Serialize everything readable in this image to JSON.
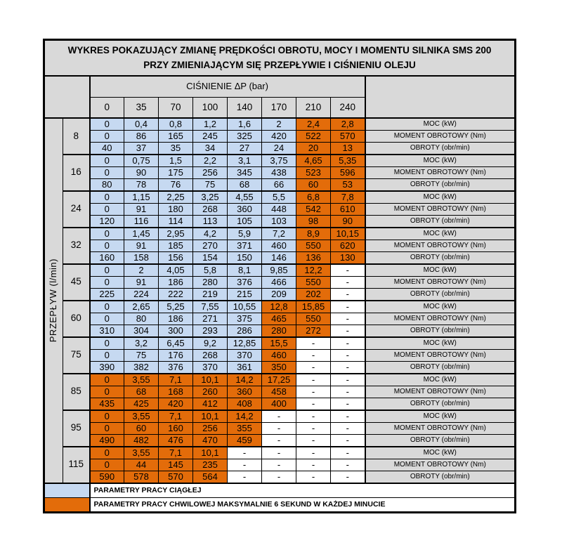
{
  "table_header": {
    "title_line1": "WYKRES POKAZUJĄCY ZMIANĘ PRĘDKOŚCI OBROTU, MOCY I MOMENTU SILNIKA SMS 200",
    "title_line2": "PRZY ZMIENIAJĄCYM SIĘ PRZEPŁYWIE I CIŚNIENIU OLEJU",
    "pressure_header": "CIŚNIENIE ΔP (bar)",
    "flow_axis_label": "PRZEPŁYW (l/min)"
  },
  "colors": {
    "continuous_blue": "#C6D9F1",
    "momentary_orange": "#E36C0A",
    "header_gray": "#D9D9D9",
    "border_black": "#000000",
    "page_white": "#FFFFFF"
  },
  "legend": {
    "continuous": "PARAMETRY PRACY CIĄGŁEJ",
    "momentary": "PARAMETRY PRACY CHWILOWEJ MAKSYMALNIE 6 SEKUND W KAŻDEJ MINUCIE"
  },
  "chart_data": {
    "type": "table",
    "title": "WYKRES POKAZUJĄCY ZMIANĘ PRĘDKOŚCI OBROTU, MOCY I MOMENTU SILNIKA SMS 200 PRZY ZMIENIAJĄCYM SIĘ PRZEPŁYWIE I CIŚNIENIU OLEJU",
    "column_axis_label": "CIŚNIENIE ΔP (bar)",
    "row_axis_label": "PRZEPŁYW (l/min)",
    "pressure_columns": [
      "0",
      "35",
      "70",
      "100",
      "140",
      "170",
      "210",
      "240"
    ],
    "metric_labels": [
      "MOC (kW)",
      "MOMENT OBROTOWY (Nm)",
      "OBROTY (obr/min)"
    ],
    "cell_style_legend": {
      "c": "continuous (blue)",
      "m": "momentary (orange)",
      "d": "no data (white dash)"
    },
    "groups": [
      {
        "flow": "8",
        "rows": [
          [
            "0",
            "0,4",
            "0,8",
            "1,2",
            "1,6",
            "2",
            "2,4",
            "2,8"
          ],
          [
            "0",
            "86",
            "165",
            "245",
            "325",
            "420",
            "522",
            "570"
          ],
          [
            "40",
            "37",
            "35",
            "34",
            "27",
            "24",
            "20",
            "13"
          ]
        ],
        "cell_styles": [
          "c",
          "c",
          "c",
          "c",
          "c",
          "c",
          "m",
          "m"
        ]
      },
      {
        "flow": "16",
        "rows": [
          [
            "0",
            "0,75",
            "1,5",
            "2,2",
            "3,1",
            "3,75",
            "4,65",
            "5,35"
          ],
          [
            "0",
            "90",
            "175",
            "256",
            "345",
            "438",
            "523",
            "596"
          ],
          [
            "80",
            "78",
            "76",
            "75",
            "68",
            "66",
            "60",
            "53"
          ]
        ],
        "cell_styles": [
          "c",
          "c",
          "c",
          "c",
          "c",
          "c",
          "m",
          "m"
        ]
      },
      {
        "flow": "24",
        "rows": [
          [
            "0",
            "1,15",
            "2,25",
            "3,25",
            "4,55",
            "5,5",
            "6,8",
            "7,8"
          ],
          [
            "0",
            "91",
            "180",
            "268",
            "360",
            "448",
            "542",
            "610"
          ],
          [
            "120",
            "116",
            "114",
            "113",
            "105",
            "103",
            "98",
            "90"
          ]
        ],
        "cell_styles": [
          "c",
          "c",
          "c",
          "c",
          "c",
          "c",
          "m",
          "m"
        ]
      },
      {
        "flow": "32",
        "rows": [
          [
            "0",
            "1,45",
            "2,95",
            "4,2",
            "5,9",
            "7,2",
            "8,9",
            "10,15"
          ],
          [
            "0",
            "91",
            "185",
            "270",
            "371",
            "460",
            "550",
            "620"
          ],
          [
            "160",
            "158",
            "156",
            "154",
            "150",
            "146",
            "136",
            "130"
          ]
        ],
        "cell_styles": [
          "c",
          "c",
          "c",
          "c",
          "c",
          "c",
          "m",
          "m"
        ]
      },
      {
        "flow": "45",
        "rows": [
          [
            "0",
            "2",
            "4,05",
            "5,8",
            "8,1",
            "9,85",
            "12,2",
            "-"
          ],
          [
            "0",
            "91",
            "186",
            "280",
            "376",
            "466",
            "550",
            "-"
          ],
          [
            "225",
            "224",
            "222",
            "219",
            "215",
            "209",
            "202",
            "-"
          ]
        ],
        "cell_styles": [
          "c",
          "c",
          "c",
          "c",
          "c",
          "c",
          "m",
          "d"
        ]
      },
      {
        "flow": "60",
        "rows": [
          [
            "0",
            "2,65",
            "5,25",
            "7,55",
            "10,55",
            "12,8",
            "15,85",
            "-"
          ],
          [
            "0",
            "80",
            "186",
            "271",
            "375",
            "465",
            "550",
            "-"
          ],
          [
            "310",
            "304",
            "300",
            "293",
            "286",
            "280",
            "272",
            "-"
          ]
        ],
        "cell_styles": [
          "c",
          "c",
          "c",
          "c",
          "c",
          "m",
          "m",
          "d"
        ]
      },
      {
        "flow": "75",
        "rows": [
          [
            "0",
            "3,2",
            "6,45",
            "9,2",
            "12,85",
            "15,5",
            "-",
            "-"
          ],
          [
            "0",
            "75",
            "176",
            "268",
            "370",
            "460",
            "-",
            "-"
          ],
          [
            "390",
            "382",
            "376",
            "370",
            "361",
            "350",
            "-",
            "-"
          ]
        ],
        "cell_styles": [
          "c",
          "c",
          "c",
          "c",
          "c",
          "m",
          "d",
          "d"
        ]
      },
      {
        "flow": "85",
        "rows": [
          [
            "0",
            "3,55",
            "7,1",
            "10,1",
            "14,2",
            "17,25",
            "-",
            "-"
          ],
          [
            "0",
            "68",
            "168",
            "260",
            "360",
            "458",
            "-",
            "-"
          ],
          [
            "435",
            "425",
            "420",
            "412",
            "408",
            "400",
            "-",
            "-"
          ]
        ],
        "cell_styles": [
          "m",
          "m",
          "m",
          "m",
          "m",
          "m",
          "d",
          "d"
        ]
      },
      {
        "flow": "95",
        "rows": [
          [
            "0",
            "3,55",
            "7,1",
            "10,1",
            "14,2",
            "-",
            "-",
            "-"
          ],
          [
            "0",
            "60",
            "160",
            "256",
            "355",
            "-",
            "-",
            "-"
          ],
          [
            "490",
            "482",
            "476",
            "470",
            "459",
            "-",
            "-",
            "-"
          ]
        ],
        "cell_styles": [
          "m",
          "m",
          "m",
          "m",
          "m",
          "d",
          "d",
          "d"
        ]
      },
      {
        "flow": "115",
        "rows": [
          [
            "0",
            "3,55",
            "7,1",
            "10,1",
            "-",
            "-",
            "-",
            "-"
          ],
          [
            "0",
            "44",
            "145",
            "235",
            "-",
            "-",
            "-",
            "-"
          ],
          [
            "590",
            "578",
            "570",
            "564",
            "-",
            "-",
            "-",
            "-"
          ]
        ],
        "cell_styles": [
          "m",
          "m",
          "m",
          "m",
          "d",
          "d",
          "d",
          "d"
        ]
      }
    ]
  }
}
